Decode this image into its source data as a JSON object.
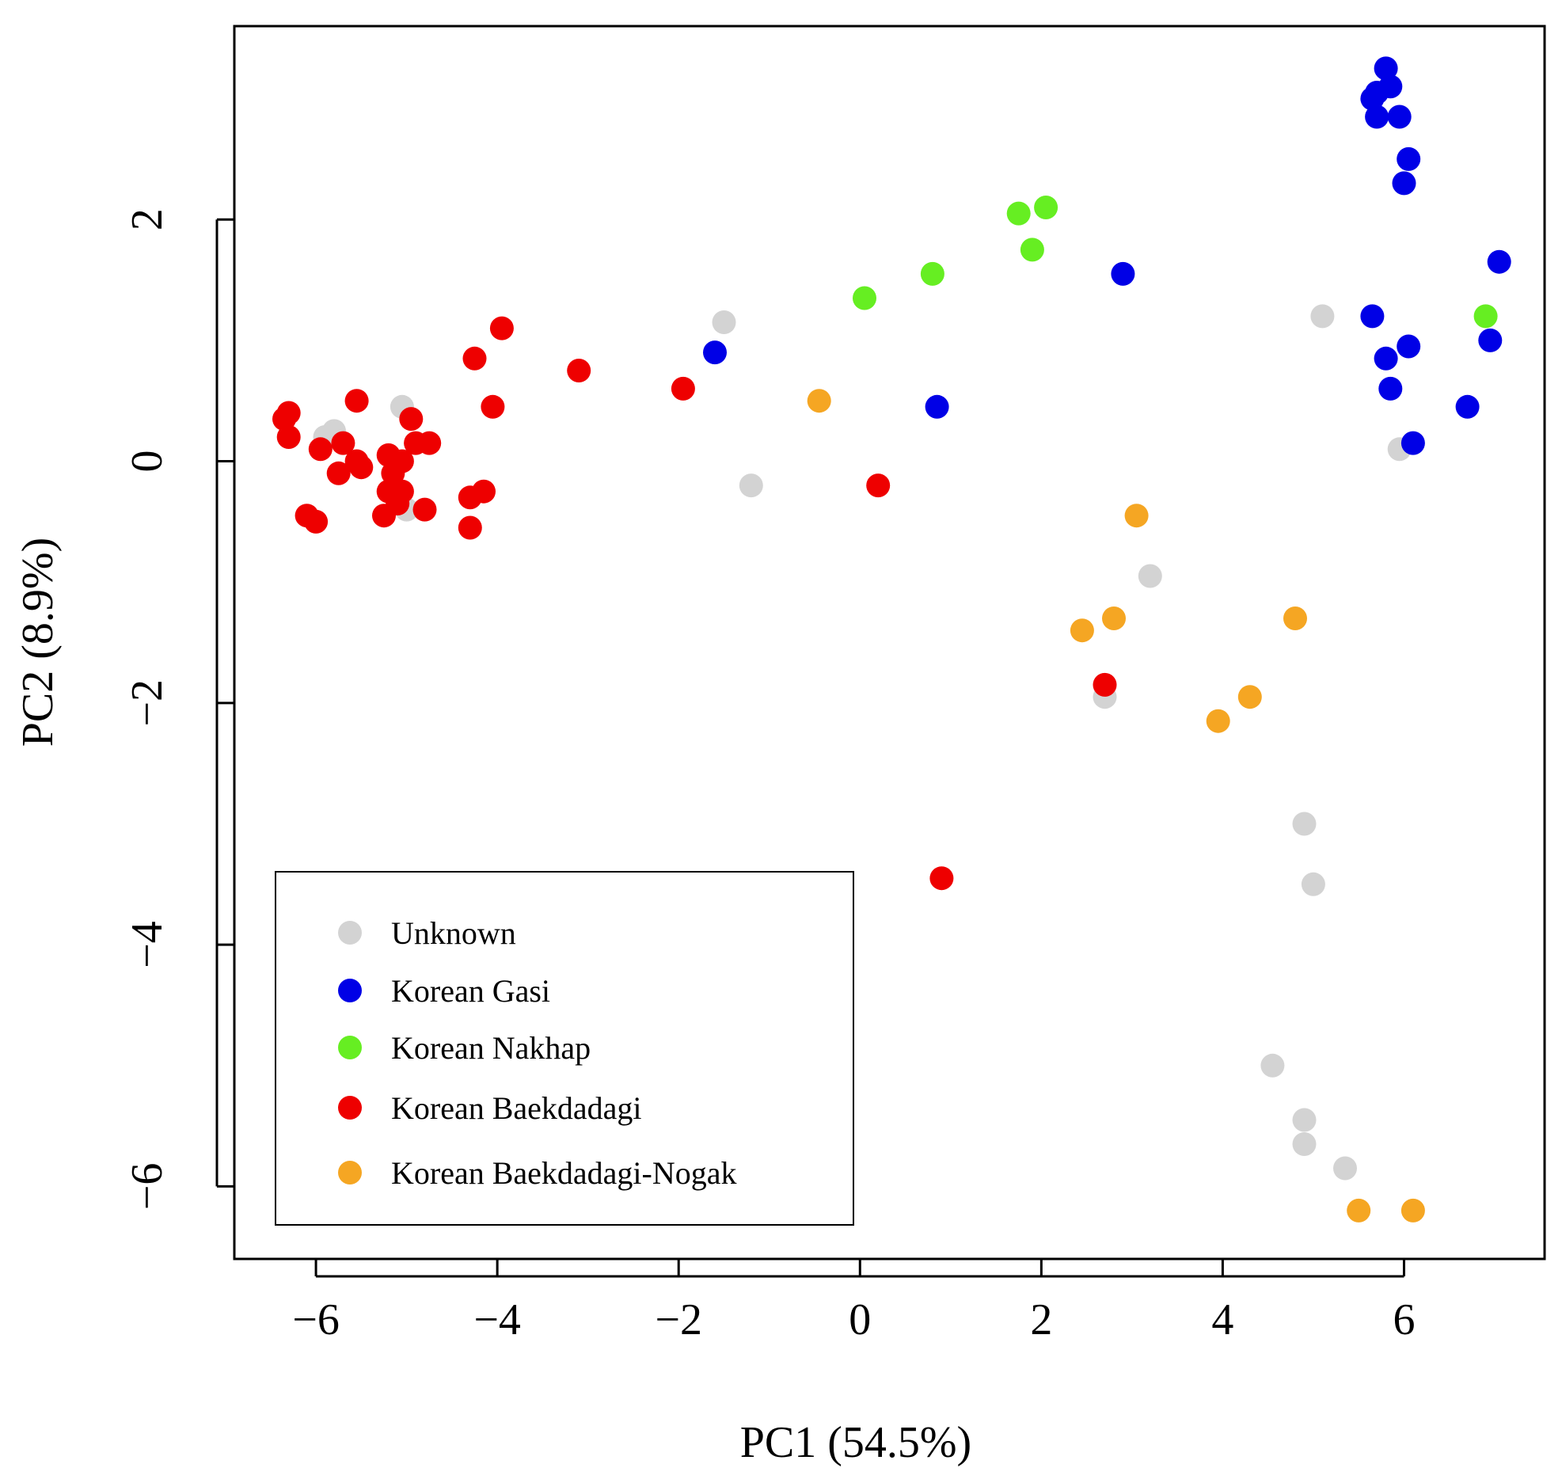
{
  "chart_data": {
    "type": "scatter",
    "title": "",
    "xlabel": "PC1 (54.5%)",
    "ylabel": "PC2 (8.9%)",
    "xlim": [
      -6.9,
      7.55
    ],
    "ylim": [
      -6.6,
      3.6
    ],
    "xticks": [
      -6,
      -4,
      -2,
      0,
      2,
      4,
      6
    ],
    "yticks": [
      -6,
      -4,
      -2,
      0,
      2
    ],
    "xtick_labels": [
      "−6",
      "−4",
      "−2",
      "0",
      "2",
      "4",
      "6"
    ],
    "ytick_labels": [
      "−6",
      "−4",
      "−2",
      "0",
      "2"
    ],
    "grid": false,
    "legend_position": "bottom-left",
    "series": [
      {
        "name": "Unknown",
        "color": "#d3d3d3",
        "points": [
          [
            -5.9,
            0.2
          ],
          [
            -5.8,
            0.25
          ],
          [
            -5.05,
            0.45
          ],
          [
            -5.0,
            -0.4
          ],
          [
            -1.5,
            1.15
          ],
          [
            -1.2,
            -0.2
          ],
          [
            2.7,
            -1.95
          ],
          [
            3.2,
            -0.95
          ],
          [
            5.1,
            1.2
          ],
          [
            5.95,
            0.1
          ],
          [
            4.9,
            -3.0
          ],
          [
            5.0,
            -3.5
          ],
          [
            4.55,
            -5.0
          ],
          [
            4.9,
            -5.45
          ],
          [
            4.9,
            -5.65
          ],
          [
            5.35,
            -5.85
          ]
        ]
      },
      {
        "name": "Korean Gasi",
        "color": "#0000e6",
        "points": [
          [
            5.8,
            3.25
          ],
          [
            5.85,
            3.1
          ],
          [
            5.7,
            3.05
          ],
          [
            5.65,
            3.0
          ],
          [
            5.7,
            2.85
          ],
          [
            5.95,
            2.85
          ],
          [
            6.05,
            2.5
          ],
          [
            6.0,
            2.3
          ],
          [
            7.05,
            1.65
          ],
          [
            2.9,
            1.55
          ],
          [
            5.65,
            1.2
          ],
          [
            6.05,
            0.95
          ],
          [
            6.95,
            1.0
          ],
          [
            5.8,
            0.85
          ],
          [
            5.85,
            0.6
          ],
          [
            6.7,
            0.45
          ],
          [
            6.1,
            0.15
          ],
          [
            -1.6,
            0.9
          ],
          [
            0.85,
            0.45
          ]
        ]
      },
      {
        "name": "Korean Nakhap",
        "color": "#66ee22",
        "points": [
          [
            1.75,
            2.05
          ],
          [
            2.05,
            2.1
          ],
          [
            1.9,
            1.75
          ],
          [
            0.8,
            1.55
          ],
          [
            0.05,
            1.35
          ],
          [
            6.9,
            1.2
          ]
        ]
      },
      {
        "name": "Korean Baekdadagi",
        "color": "#ee0000",
        "points": [
          [
            -6.3,
            0.4
          ],
          [
            -6.35,
            0.35
          ],
          [
            -6.3,
            0.2
          ],
          [
            -5.55,
            0.5
          ],
          [
            -5.95,
            0.1
          ],
          [
            -5.7,
            0.15
          ],
          [
            -5.55,
            0.0
          ],
          [
            -5.75,
            -0.1
          ],
          [
            -5.5,
            -0.05
          ],
          [
            -5.2,
            0.05
          ],
          [
            -5.05,
            0.0
          ],
          [
            -5.15,
            -0.1
          ],
          [
            -5.2,
            -0.25
          ],
          [
            -5.05,
            -0.25
          ],
          [
            -5.1,
            -0.35
          ],
          [
            -5.25,
            -0.45
          ],
          [
            -4.95,
            0.35
          ],
          [
            -4.9,
            0.15
          ],
          [
            -4.75,
            0.15
          ],
          [
            -4.8,
            -0.4
          ],
          [
            -6.1,
            -0.45
          ],
          [
            -6.0,
            -0.5
          ],
          [
            -4.3,
            -0.55
          ],
          [
            -4.3,
            -0.3
          ],
          [
            -4.15,
            -0.25
          ],
          [
            -4.05,
            0.45
          ],
          [
            -4.25,
            0.85
          ],
          [
            -3.95,
            1.1
          ],
          [
            -3.1,
            0.75
          ],
          [
            -1.95,
            0.6
          ],
          [
            0.2,
            -0.2
          ],
          [
            2.7,
            -1.85
          ],
          [
            0.9,
            -3.45
          ]
        ]
      },
      {
        "name": "Korean Baekdadagi-Nogak",
        "color": "#f5a623",
        "points": [
          [
            -0.45,
            0.5
          ],
          [
            3.05,
            -0.45
          ],
          [
            2.45,
            -1.4
          ],
          [
            2.8,
            -1.3
          ],
          [
            4.8,
            -1.3
          ],
          [
            4.3,
            -1.95
          ],
          [
            3.95,
            -2.15
          ],
          [
            5.5,
            -6.2
          ],
          [
            6.1,
            -6.2
          ]
        ]
      }
    ]
  }
}
